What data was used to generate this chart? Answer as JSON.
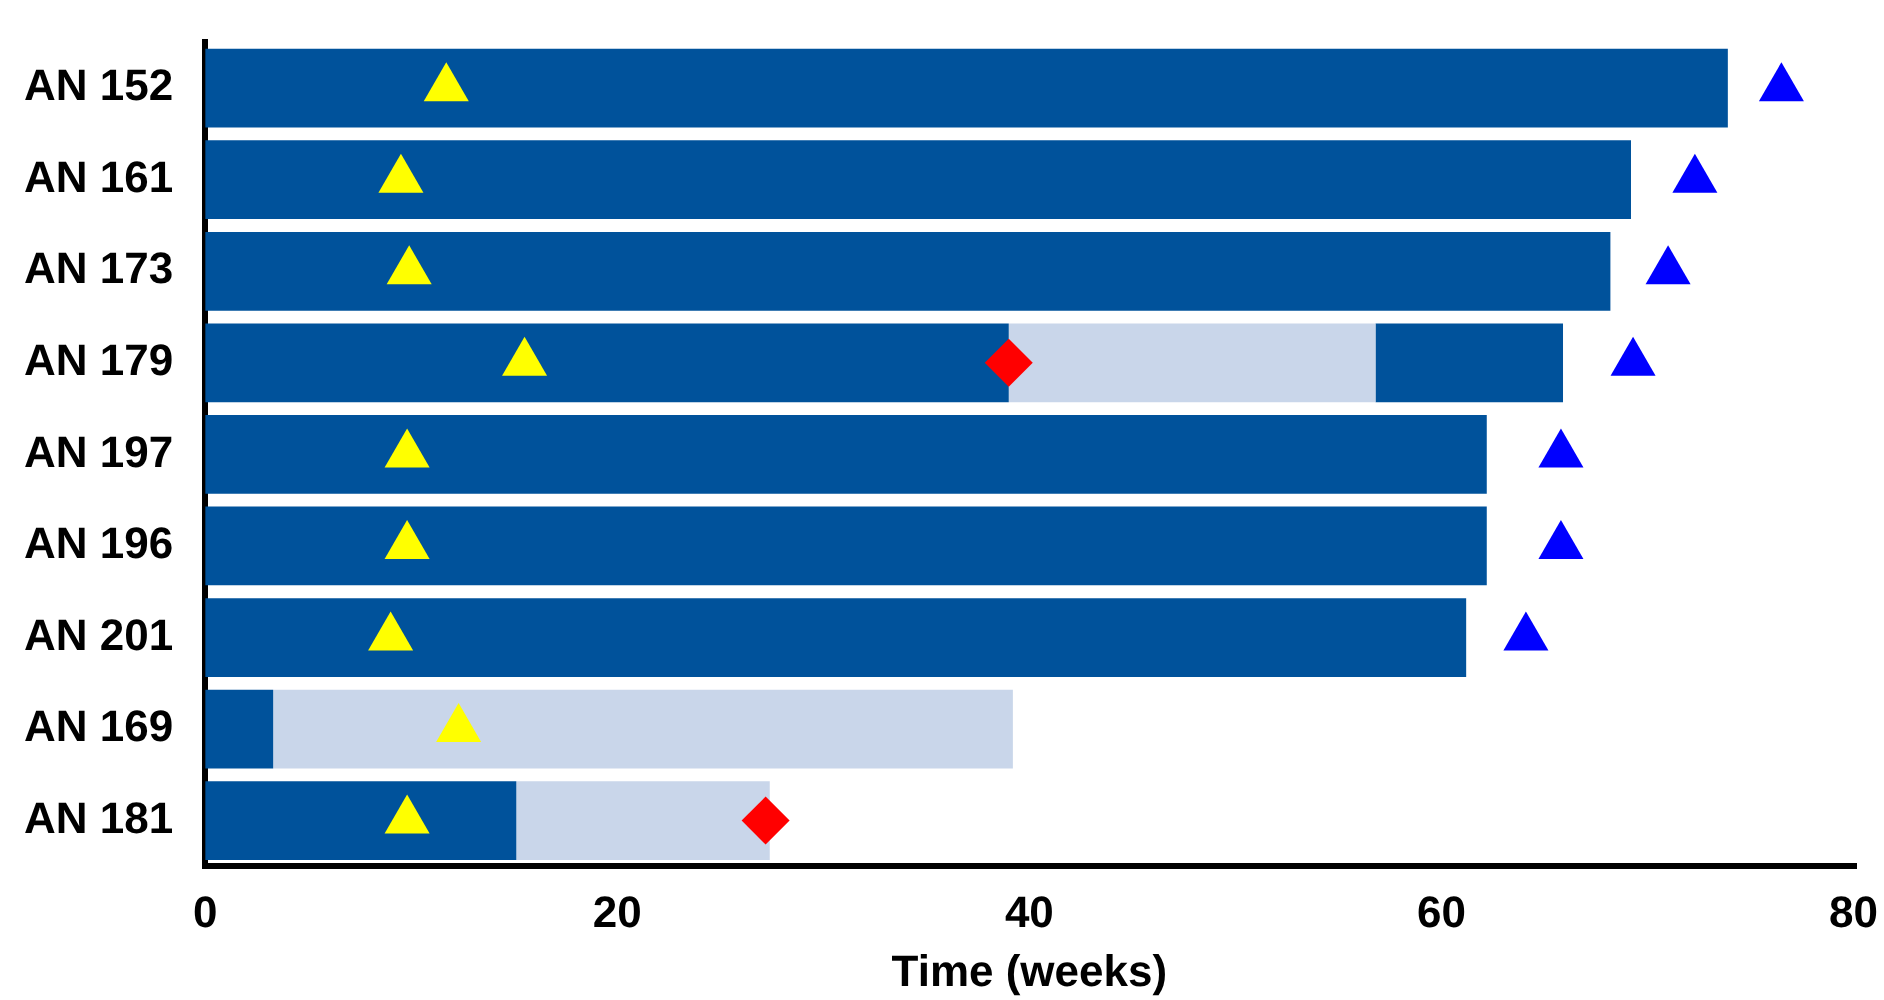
{
  "chart_data": {
    "type": "bar",
    "orientation": "horizontal",
    "stacked": true,
    "xlabel": "Time (weeks)",
    "categories": [
      "AN 152",
      "AN 161",
      "AN 173",
      "AN 179",
      "AN 197",
      "AN 196",
      "AN 201",
      "AN 169",
      "AN 181"
    ],
    "xlim": [
      0,
      80
    ],
    "xticks": [
      0,
      20,
      40,
      60,
      80
    ],
    "grid": false,
    "legend": false,
    "series": [
      {
        "type": "bar",
        "color": "#00529b",
        "values": [
          73.9,
          69.2,
          68.2,
          39,
          62.2,
          62.2,
          61.2,
          3.3,
          15.1
        ]
      },
      {
        "type": "bar",
        "color": "#c9d6ea",
        "values": [
          null,
          null,
          null,
          17.8,
          null,
          null,
          null,
          35.9,
          12.3
        ]
      },
      {
        "type": "bar",
        "color": "#00529b",
        "values": [
          null,
          null,
          null,
          9.1,
          null,
          null,
          null,
          null,
          null
        ]
      },
      {
        "type": "scatter",
        "marker": "triangle",
        "color": "#ffff00",
        "values": [
          11.7,
          9.5,
          9.9,
          15.5,
          9.8,
          9.8,
          9,
          12.3,
          9.8
        ]
      },
      {
        "type": "scatter",
        "marker": "diamond",
        "color": "#ff0000",
        "values": [
          null,
          null,
          null,
          39,
          null,
          null,
          null,
          null,
          27.2
        ]
      },
      {
        "type": "scatter",
        "marker": "triangle",
        "color": "#0000ff",
        "values": [
          76.5,
          72.3,
          71,
          69.3,
          65.8,
          65.8,
          64.1,
          null,
          null
        ]
      }
    ]
  }
}
